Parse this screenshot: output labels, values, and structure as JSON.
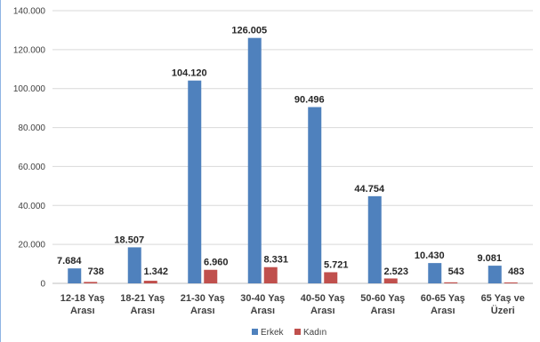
{
  "chart_data": {
    "type": "bar",
    "title": "",
    "xlabel": "",
    "ylabel": "",
    "ylim": [
      0,
      140000
    ],
    "yticks": [
      0,
      20000,
      40000,
      60000,
      80000,
      100000,
      120000,
      140000
    ],
    "ytick_labels": [
      "0",
      "20.000",
      "40.000",
      "60.000",
      "80.000",
      "100.000",
      "120.000",
      "140.000"
    ],
    "grid": true,
    "legend_position": "bottom",
    "categories": [
      [
        "12-18 Yaş",
        "Arası"
      ],
      [
        "18-21 Yaş",
        "Arası"
      ],
      [
        "21-30 Yaş",
        "Arası"
      ],
      [
        "30-40 Yaş",
        "Arası"
      ],
      [
        "40-50 Yaş",
        "Arası"
      ],
      [
        "50-60 Yaş",
        "Arası"
      ],
      [
        "60-65 Yaş",
        "Arası"
      ],
      [
        "65 Yaş ve",
        "Üzeri"
      ]
    ],
    "series": [
      {
        "name": "Erkek",
        "color": "#4f81bd",
        "values": [
          7684,
          18507,
          104120,
          126005,
          90496,
          44754,
          10430,
          9081
        ],
        "labels": [
          "7.684",
          "18.507",
          "104.120",
          "126.005",
          "90.496",
          "44.754",
          "10.430",
          "9.081"
        ]
      },
      {
        "name": "Kadın",
        "color": "#c0504d",
        "values": [
          738,
          1342,
          6960,
          8331,
          5721,
          2523,
          543,
          483
        ],
        "labels": [
          "738",
          "1.342",
          "6.960",
          "8.331",
          "5.721",
          "2.523",
          "543",
          "483"
        ]
      }
    ]
  }
}
